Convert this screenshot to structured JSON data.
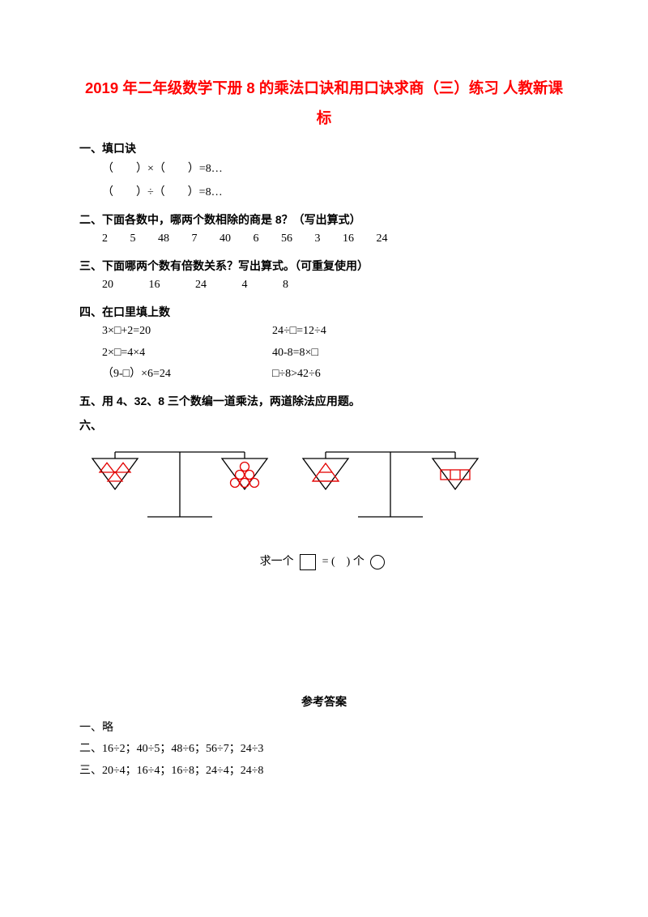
{
  "title_line1": "2019 年二年级数学下册 8 的乘法口诀和用口诀求商（三）练习 人教新课",
  "title_line2": "标",
  "sections": {
    "one": {
      "h": "一、填口诀",
      "l1": "（　　）×（　　）=8…",
      "l2": "（　　）÷（　　）=8…"
    },
    "two": {
      "h": "二、下面各数中，哪两个数相除的商是 8？（写出算式）",
      "nums": [
        "2",
        "5",
        "48",
        "7",
        "40",
        "6",
        "56",
        "3",
        "16",
        "24"
      ]
    },
    "three": {
      "h": "三、下面哪两个数有倍数关系？写出算式。（可重复使用）",
      "nums": [
        "20",
        "16",
        "24",
        "4",
        "8"
      ]
    },
    "four": {
      "h": "四、在口里填上数",
      "rows": [
        [
          "3×□+2=20",
          "24÷□=12÷4"
        ],
        [
          "2×□=4×4",
          "40-8=8×□"
        ],
        [
          "（9-□）×6=24",
          "□÷8>42÷6"
        ]
      ]
    },
    "five": {
      "h": "五、用 4、32、8 三个数编一道乘法，两道除法应用题。"
    },
    "six": {
      "h": "六、",
      "q_before": "求一个",
      "q_mid": " = (　) 个"
    }
  },
  "answers": {
    "title": "参考答案",
    "one": "一、略",
    "two": "二、16÷2；40÷5；48÷6；56÷7；24÷3",
    "three": "三、20÷4；16÷4；16÷8；24÷4；24÷8"
  },
  "svg": {
    "stroke_black": "#000000",
    "stroke_red": "#e30000",
    "stroke_w": "1.3"
  }
}
